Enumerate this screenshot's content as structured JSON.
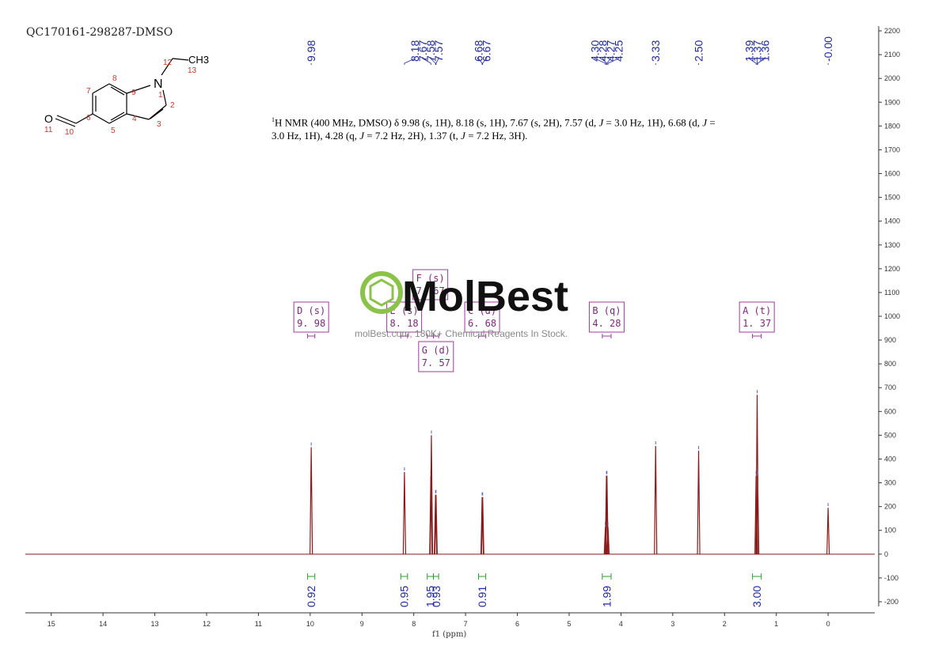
{
  "sample_id": "QC170161-298287-DMSO",
  "molecule": {
    "atoms": [
      {
        "label": "O",
        "num": "11"
      },
      {
        "label": "",
        "num": "10"
      },
      {
        "label": "",
        "num": "6"
      },
      {
        "label": "",
        "num": "5"
      },
      {
        "label": "",
        "num": "7"
      },
      {
        "label": "",
        "num": "8"
      },
      {
        "label": "",
        "num": "9"
      },
      {
        "label": "",
        "num": "4"
      },
      {
        "label": "N",
        "num": "1"
      },
      {
        "label": "",
        "num": "2"
      },
      {
        "label": "",
        "num": "3"
      },
      {
        "label": "",
        "num": "12"
      },
      {
        "label": "CH3",
        "num": "13"
      }
    ]
  },
  "description": {
    "nucleus_sup": "1",
    "text_html": "H NMR (400 MHz, DMSO) δ 9.98 (s, 1H), 8.18 (s, 1H), 7.67 (s, 2H), 7.57 (d, <i>J</i> = 3.0 Hz, 1H), 6.68 (d, <i>J</i> = 3.0 Hz, 1H), 4.28 (q, <i>J</i> = 7.2 Hz, 2H), 1.37 (t, <i>J</i> = 7.2 Hz, 3H)."
  },
  "watermark": {
    "brand": "MolBest",
    "tagline": "molBest.com, 180K+ Chemical Reagents In Stock."
  },
  "chart_data": {
    "type": "line",
    "title": "",
    "xlabel": "f1 (ppm)",
    "ylabel": "",
    "xlim": [
      15.5,
      -0.9
    ],
    "ylim": [
      -220,
      2220
    ],
    "x_ticks": [
      15,
      14,
      13,
      12,
      11,
      10,
      9,
      8,
      7,
      6,
      5,
      4,
      3,
      2,
      1,
      0
    ],
    "y_ticks": [
      2200,
      2100,
      2000,
      1900,
      1800,
      1700,
      1600,
      1500,
      1400,
      1300,
      1200,
      1100,
      1000,
      900,
      800,
      700,
      600,
      500,
      400,
      300,
      200,
      100,
      0,
      -100,
      -200
    ],
    "peaks": [
      {
        "ppm": 9.98,
        "height": 450
      },
      {
        "ppm": 8.18,
        "height": 345
      },
      {
        "ppm": 7.67,
        "height": 330
      },
      {
        "ppm": 7.66,
        "height": 500
      },
      {
        "ppm": 7.58,
        "height": 250
      },
      {
        "ppm": 7.57,
        "height": 250
      },
      {
        "ppm": 6.68,
        "height": 240
      },
      {
        "ppm": 6.67,
        "height": 240
      },
      {
        "ppm": 4.3,
        "height": 115
      },
      {
        "ppm": 4.28,
        "height": 330
      },
      {
        "ppm": 4.27,
        "height": 330
      },
      {
        "ppm": 4.25,
        "height": 115
      },
      {
        "ppm": 3.33,
        "height": 455
      },
      {
        "ppm": 2.5,
        "height": 435
      },
      {
        "ppm": 1.39,
        "height": 330
      },
      {
        "ppm": 1.37,
        "height": 670
      },
      {
        "ppm": 1.36,
        "height": 330
      },
      {
        "ppm": 0.0,
        "height": 195
      }
    ],
    "peak_labels": [
      {
        "group": [
          9.98
        ],
        "labels": [
          "9.98"
        ]
      },
      {
        "group": [
          8.18,
          7.67,
          7.58,
          7.57
        ],
        "labels": [
          "8.18",
          "7.67",
          "7.58",
          "7.57"
        ]
      },
      {
        "group": [
          6.68,
          6.67
        ],
        "labels": [
          "6.68",
          "6.67"
        ]
      },
      {
        "group": [
          4.3,
          4.28,
          4.27,
          4.25
        ],
        "labels": [
          "4.30",
          "4.28",
          "4.27",
          "4.25"
        ]
      },
      {
        "group": [
          3.33
        ],
        "labels": [
          "3.33"
        ]
      },
      {
        "group": [
          2.5
        ],
        "labels": [
          "2.50"
        ]
      },
      {
        "group": [
          1.39,
          1.37,
          1.36
        ],
        "labels": [
          "1.39",
          "1.37",
          "1.36"
        ]
      },
      {
        "group": [
          0.0
        ],
        "labels": [
          "-0.00"
        ]
      }
    ],
    "integrals": [
      {
        "from": 10.05,
        "to": 9.91,
        "value": "0.92"
      },
      {
        "from": 8.25,
        "to": 8.12,
        "value": "0.95"
      },
      {
        "from": 7.74,
        "to": 7.62,
        "value": "1.95"
      },
      {
        "from": 7.62,
        "to": 7.52,
        "value": "0.93"
      },
      {
        "from": 6.75,
        "to": 6.61,
        "value": "0.91"
      },
      {
        "from": 4.36,
        "to": 4.19,
        "value": "1.99"
      },
      {
        "from": 1.46,
        "to": 1.29,
        "value": "3.00"
      }
    ],
    "multiplets": [
      {
        "letter": "D",
        "mult": "s",
        "shift": "9.98",
        "from": 10.05,
        "to": 9.91
      },
      {
        "letter": "E",
        "mult": "s",
        "shift": "8.18",
        "from": 8.25,
        "to": 8.12
      },
      {
        "letter": "F",
        "mult": "s",
        "shift": "7.67",
        "from": 7.74,
        "to": 7.62
      },
      {
        "letter": "G",
        "mult": "d",
        "shift": "7.57",
        "from": 7.62,
        "to": 7.52
      },
      {
        "letter": "C",
        "mult": "d",
        "shift": "6.68",
        "from": 6.75,
        "to": 6.61
      },
      {
        "letter": "B",
        "mult": "q",
        "shift": "4.28",
        "from": 4.36,
        "to": 4.19
      },
      {
        "letter": "A",
        "mult": "t",
        "shift": "1.37",
        "from": 1.46,
        "to": 1.29
      }
    ],
    "line_color": "#8b1a1a",
    "label_color": "#1f2a9c",
    "integral_color": "#2e9e2e",
    "box_color": "#9b3b9b"
  }
}
